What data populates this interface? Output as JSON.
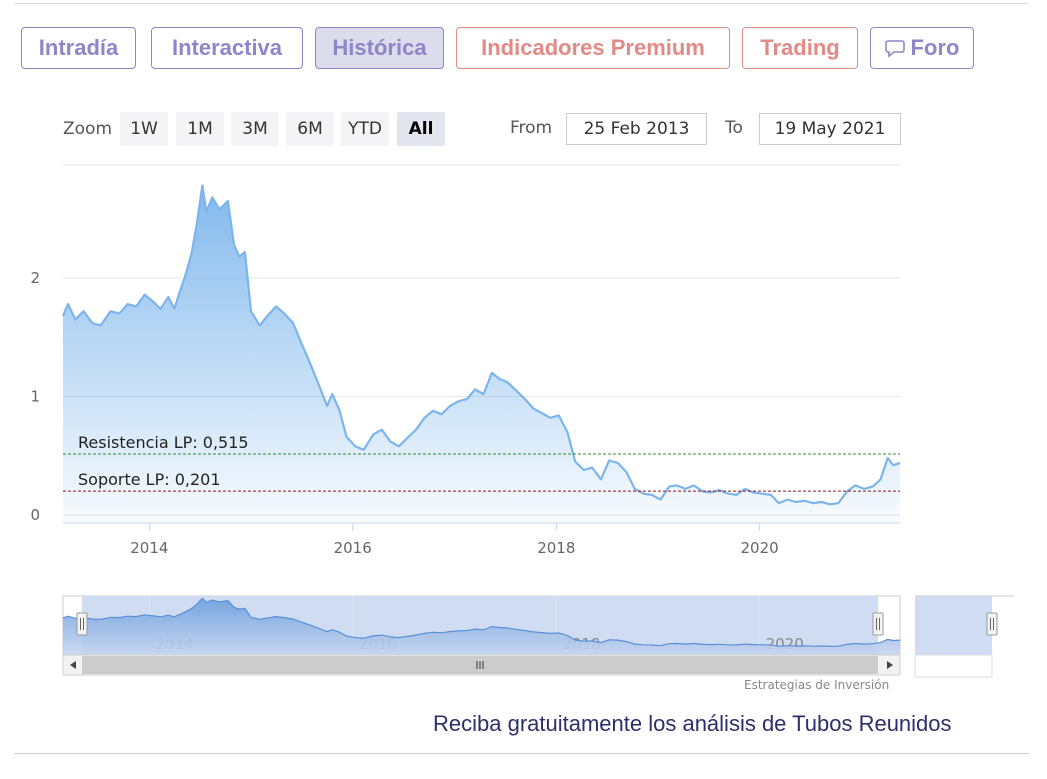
{
  "tabs": [
    {
      "label": "Intradía"
    },
    {
      "label": "Interactiva"
    },
    {
      "label": "Histórica"
    },
    {
      "label": "Indicadores Premium"
    },
    {
      "label": "Trading"
    },
    {
      "label": "Foro"
    }
  ],
  "active_tab": "Histórica",
  "zoom": {
    "label": "Zoom",
    "buttons": [
      "1W",
      "1M",
      "3M",
      "6M",
      "YTD",
      "All"
    ],
    "selected": "All"
  },
  "range": {
    "from_label": "From",
    "from_value": "25 Feb 2013",
    "to_label": "To",
    "to_value": "19 May 2021"
  },
  "credits": "Estrategias de Inversión",
  "cta": "Reciba gratuitamente los análisis de Tubos Reunidos",
  "colors": {
    "tab_accent": "#8d86c9",
    "tab_premium": "#e28a86",
    "series_line": "#7cb5ec",
    "resistance": "#2e8b2e",
    "support": "#8b1a1a"
  },
  "chart_data": {
    "type": "area",
    "x_axis_type": "date",
    "xlim": [
      "2013-02-25",
      "2021-05-19"
    ],
    "ylim": [
      0,
      3
    ],
    "y_ticks": [
      0,
      1,
      2
    ],
    "x_ticks": [
      "2014",
      "2016",
      "2018",
      "2020"
    ],
    "grid": true,
    "annotations": [
      {
        "label": "Resistencia LP: 0,515",
        "y": 0.515
      },
      {
        "label": "Soporte LP: 0,201",
        "y": 0.201
      }
    ],
    "navigator_ticks": [
      "2014",
      "2016",
      "2018",
      "2020"
    ],
    "series": [
      {
        "points": [
          [
            "2013-02-25",
            1.68
          ],
          [
            "2013-03-15",
            1.78
          ],
          [
            "2013-04-10",
            1.65
          ],
          [
            "2013-05-10",
            1.72
          ],
          [
            "2013-06-10",
            1.62
          ],
          [
            "2013-07-10",
            1.6
          ],
          [
            "2013-08-15",
            1.72
          ],
          [
            "2013-09-15",
            1.7
          ],
          [
            "2013-10-15",
            1.78
          ],
          [
            "2013-11-15",
            1.76
          ],
          [
            "2013-12-15",
            1.86
          ],
          [
            "2014-01-15",
            1.8
          ],
          [
            "2014-02-10",
            1.74
          ],
          [
            "2014-03-10",
            1.84
          ],
          [
            "2014-04-01",
            1.74
          ],
          [
            "2014-04-20",
            1.88
          ],
          [
            "2014-05-10",
            2.02
          ],
          [
            "2014-06-01",
            2.2
          ],
          [
            "2014-06-20",
            2.45
          ],
          [
            "2014-07-10",
            2.78
          ],
          [
            "2014-07-25",
            2.56
          ],
          [
            "2014-08-15",
            2.68
          ],
          [
            "2014-09-10",
            2.58
          ],
          [
            "2014-10-10",
            2.65
          ],
          [
            "2014-11-01",
            2.28
          ],
          [
            "2014-11-20",
            2.18
          ],
          [
            "2014-12-10",
            2.22
          ],
          [
            "2015-01-01",
            1.72
          ],
          [
            "2015-02-01",
            1.6
          ],
          [
            "2015-03-01",
            1.68
          ],
          [
            "2015-04-01",
            1.76
          ],
          [
            "2015-05-01",
            1.7
          ],
          [
            "2015-06-01",
            1.62
          ],
          [
            "2015-07-01",
            1.45
          ],
          [
            "2015-08-01",
            1.28
          ],
          [
            "2015-09-01",
            1.1
          ],
          [
            "2015-10-01",
            0.92
          ],
          [
            "2015-10-20",
            1.02
          ],
          [
            "2015-11-15",
            0.88
          ],
          [
            "2015-12-10",
            0.66
          ],
          [
            "2016-01-10",
            0.58
          ],
          [
            "2016-02-10",
            0.55
          ],
          [
            "2016-03-15",
            0.68
          ],
          [
            "2016-04-15",
            0.72
          ],
          [
            "2016-05-15",
            0.62
          ],
          [
            "2016-06-15",
            0.58
          ],
          [
            "2016-07-15",
            0.65
          ],
          [
            "2016-08-15",
            0.72
          ],
          [
            "2016-09-15",
            0.82
          ],
          [
            "2016-10-15",
            0.88
          ],
          [
            "2016-11-15",
            0.85
          ],
          [
            "2016-12-15",
            0.92
          ],
          [
            "2017-01-15",
            0.96
          ],
          [
            "2017-02-15",
            0.98
          ],
          [
            "2017-03-15",
            1.06
          ],
          [
            "2017-04-15",
            1.02
          ],
          [
            "2017-05-15",
            1.2
          ],
          [
            "2017-06-10",
            1.15
          ],
          [
            "2017-07-10",
            1.12
          ],
          [
            "2017-08-10",
            1.05
          ],
          [
            "2017-09-10",
            0.98
          ],
          [
            "2017-10-10",
            0.9
          ],
          [
            "2017-11-10",
            0.86
          ],
          [
            "2017-12-10",
            0.82
          ],
          [
            "2018-01-10",
            0.84
          ],
          [
            "2018-02-10",
            0.7
          ],
          [
            "2018-03-10",
            0.45
          ],
          [
            "2018-04-10",
            0.38
          ],
          [
            "2018-05-10",
            0.4
          ],
          [
            "2018-06-10",
            0.3
          ],
          [
            "2018-07-10",
            0.46
          ],
          [
            "2018-08-10",
            0.44
          ],
          [
            "2018-09-10",
            0.36
          ],
          [
            "2018-10-10",
            0.22
          ],
          [
            "2018-11-10",
            0.18
          ],
          [
            "2018-12-10",
            0.17
          ],
          [
            "2019-01-10",
            0.13
          ],
          [
            "2019-02-10",
            0.24
          ],
          [
            "2019-03-10",
            0.25
          ],
          [
            "2019-04-10",
            0.22
          ],
          [
            "2019-05-10",
            0.25
          ],
          [
            "2019-06-10",
            0.2
          ],
          [
            "2019-07-10",
            0.19
          ],
          [
            "2019-08-10",
            0.21
          ],
          [
            "2019-09-10",
            0.18
          ],
          [
            "2019-10-10",
            0.17
          ],
          [
            "2019-11-10",
            0.22
          ],
          [
            "2019-12-10",
            0.19
          ],
          [
            "2020-01-10",
            0.18
          ],
          [
            "2020-02-10",
            0.17
          ],
          [
            "2020-03-10",
            0.1
          ],
          [
            "2020-04-10",
            0.13
          ],
          [
            "2020-05-10",
            0.11
          ],
          [
            "2020-06-10",
            0.12
          ],
          [
            "2020-07-10",
            0.1
          ],
          [
            "2020-08-10",
            0.11
          ],
          [
            "2020-09-10",
            0.09
          ],
          [
            "2020-10-10",
            0.1
          ],
          [
            "2020-11-10",
            0.2
          ],
          [
            "2020-12-10",
            0.25
          ],
          [
            "2021-01-10",
            0.22
          ],
          [
            "2021-02-10",
            0.24
          ],
          [
            "2021-03-10",
            0.3
          ],
          [
            "2021-04-05",
            0.48
          ],
          [
            "2021-04-25",
            0.42
          ],
          [
            "2021-05-19",
            0.44
          ]
        ]
      }
    ]
  }
}
